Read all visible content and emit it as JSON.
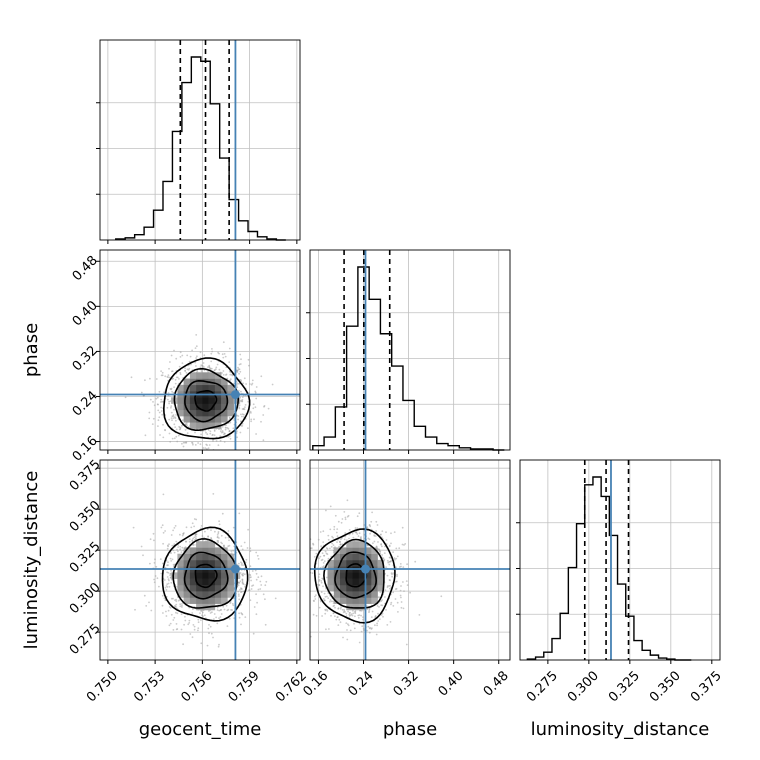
{
  "chart_data": {
    "type": "corner",
    "parameters": [
      "geocent_time",
      "phase",
      "luminosity_distance"
    ],
    "truths": {
      "geocent_time": 0.7581,
      "phase": 0.2435,
      "luminosity_distance": 0.3135
    },
    "colors": {
      "truth": "#4682b4",
      "hist": "#000000",
      "grid": "#c0c0c0",
      "scatter": "#a0a0a0"
    },
    "grid": true,
    "axes": {
      "geocent_time": {
        "range": [
          0.7495,
          0.7622
        ],
        "ticks": [
          "0.750",
          "0.753",
          "0.756",
          "0.759",
          "0.762"
        ]
      },
      "phase": {
        "range": [
          0.145,
          0.5
        ],
        "ticks": [
          "0.16",
          "0.24",
          "0.32",
          "0.40",
          "0.48"
        ]
      },
      "luminosity_distance": {
        "range": [
          0.258,
          0.38
        ],
        "ticks": [
          "0.275",
          "0.300",
          "0.325",
          "0.350",
          "0.375"
        ]
      }
    },
    "marginals": {
      "geocent_time": {
        "bin_edges": [
          0.7505,
          0.7511,
          0.7517,
          0.7523,
          0.7529,
          0.7535,
          0.7541,
          0.7547,
          0.7553,
          0.7559,
          0.7565,
          0.7571,
          0.7577,
          0.7583,
          0.7589,
          0.7595,
          0.7601,
          0.7607,
          0.7613
        ],
        "counts": [
          1,
          2,
          5,
          12,
          28,
          55,
          102,
          148,
          172,
          168,
          128,
          77,
          38,
          18,
          8,
          3,
          1,
          0
        ],
        "quantiles": [
          0.7546,
          0.7562,
          0.7577
        ]
      },
      "phase": {
        "bin_edges": [
          0.15,
          0.17,
          0.19,
          0.21,
          0.23,
          0.25,
          0.27,
          0.29,
          0.31,
          0.33,
          0.35,
          0.37,
          0.39,
          0.41,
          0.43,
          0.45,
          0.47,
          0.49
        ],
        "counts": [
          4,
          12,
          40,
          115,
          170,
          140,
          108,
          78,
          46,
          22,
          12,
          6,
          4,
          2,
          1,
          1,
          0
        ],
        "quantiles": [
          0.2055,
          0.2405,
          0.2865
        ]
      },
      "luminosity_distance": {
        "bin_edges": [
          0.2625,
          0.2675,
          0.2725,
          0.2775,
          0.2825,
          0.2875,
          0.2925,
          0.2975,
          0.3025,
          0.3075,
          0.3125,
          0.3175,
          0.3225,
          0.3275,
          0.3325,
          0.3375,
          0.3425,
          0.3475,
          0.3525,
          0.3575,
          0.3625
        ],
        "counts": [
          1,
          3,
          8,
          22,
          48,
          95,
          140,
          180,
          188,
          168,
          128,
          78,
          45,
          20,
          10,
          5,
          2,
          1,
          0,
          0
        ],
        "quantiles": [
          0.2975,
          0.3105,
          0.3242
        ]
      }
    },
    "joint": [
      {
        "x": "geocent_time",
        "y": "phase",
        "center": [
          0.7562,
          0.233
        ],
        "sigma": [
          0.00135,
          0.0355
        ]
      },
      {
        "x": "geocent_time",
        "y": "luminosity_distance",
        "center": [
          0.7562,
          0.3095
        ],
        "sigma": [
          0.00135,
          0.0139
        ]
      },
      {
        "x": "phase",
        "y": "luminosity_distance",
        "center": [
          0.226,
          0.3095
        ],
        "sigma": [
          0.0355,
          0.0139
        ]
      }
    ]
  }
}
